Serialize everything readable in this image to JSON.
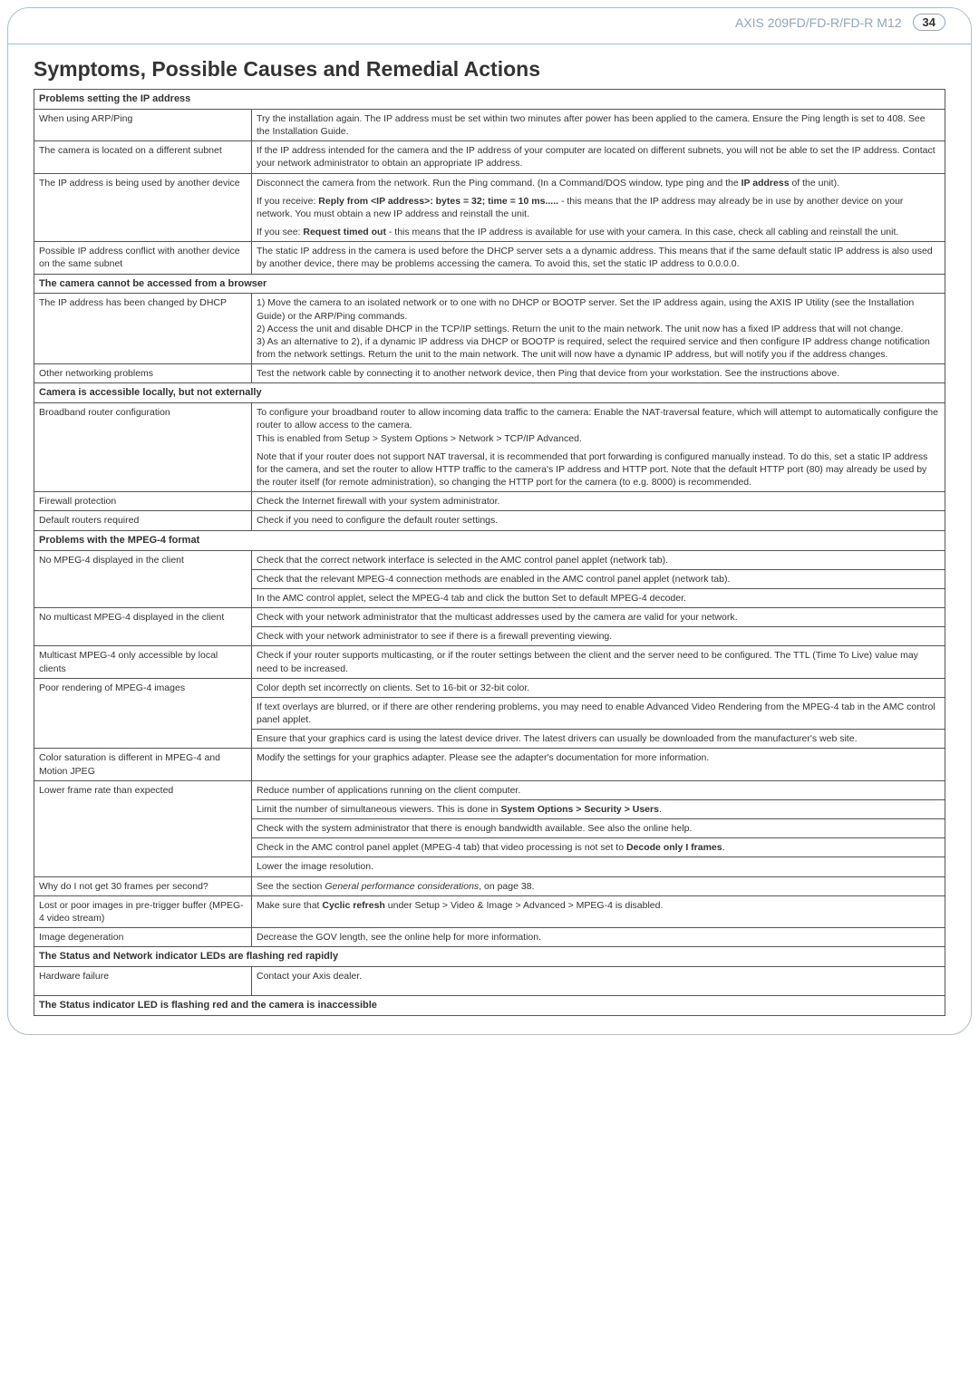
{
  "header": {
    "product": "AXIS 209FD/FD-R/FD-R M12",
    "page_number": "34"
  },
  "title": "Symptoms, Possible Causes and Remedial Actions",
  "groups": [
    {
      "header": "Problems setting the IP address",
      "rows": [
        {
          "problem": "When using ARP/Ping",
          "actions": [
            "Try the installation again. The IP address must be set within two minutes after power has been applied to the camera. Ensure the Ping length is set to 408. See the Installation Guide."
          ]
        },
        {
          "problem": "The camera is located on a different subnet",
          "actions": [
            "If the IP address intended for the camera and the IP address of your computer are located on different subnets, you will not be able to set the IP address. Contact your network administrator to obtain an appropriate IP address."
          ]
        },
        {
          "problem": "The IP address is being used by another device",
          "action_html": "<p>Disconnect the camera from the network. Run the Ping command. (In a Command/DOS window, type ping and the <span class=\"bold\">IP address</span> of the unit).</p><p>If you receive: <span class=\"bold\">Reply from &lt;IP address&gt;: bytes = 32; time = 10 ms.....</span> - this means that the IP address may already be in use by another device on your network. You must obtain a new IP address and reinstall the unit.</p><p>If you see: <span class=\"bold\">Request timed out</span> - this means that the IP address is available for use with your camera. In this case, check all cabling and reinstall the unit.</p>"
        },
        {
          "problem": "Possible IP address conflict with another device on the same subnet",
          "actions": [
            "The static IP address in the camera is used before the DHCP server sets a a dynamic address. This means that if the same default static IP address is also used by another device, there may be problems accessing the camera. To avoid this, set the static IP address to 0.0.0.0."
          ]
        }
      ]
    },
    {
      "header": "The camera cannot be accessed from a browser",
      "rows": [
        {
          "problem": "The IP address has been changed by DHCP",
          "action_html": "<p>1) Move the camera to an isolated network or to one with no DHCP or BOOTP server. Set the IP address again, using the AXIS IP Utility (see the Installation Guide) or the ARP/Ping commands.<br>2) Access the unit and disable DHCP in the TCP/IP settings. Return the unit to the main network. The unit now has a fixed IP address that will not change.<br>3) As an alternative to 2), if a dynamic IP address via DHCP or BOOTP is required, select the required service and then configure IP address change notification from the network settings. Return the unit to the main network. The unit will now have a dynamic IP address, but will notify you if the address changes.</p>"
        },
        {
          "problem": "Other networking problems",
          "actions": [
            "Test the network cable by connecting it to another network device, then Ping that device from your workstation. See the instructions above."
          ]
        }
      ]
    },
    {
      "header": "Camera is accessible locally, but not externally",
      "rows": [
        {
          "problem": "Broadband router configuration",
          "action_html": "<p>To configure your broadband router to allow incoming data traffic to the camera: Enable the NAT-traversal feature, which will attempt to automatically configure the router to allow access to the camera.<br>This is enabled from Setup &gt; System Options &gt; Network &gt; TCP/IP Advanced.</p><p>Note that if your router does not support NAT traversal, it is recommended that port forwarding is configured manually instead. To do this, set a static IP address for the camera, and set the router to allow HTTP traffic to the camera's IP address and HTTP port. Note that the default HTTP port (80) may already be used by the router itself (for remote administration), so changing the HTTP port for the camera (to e.g. 8000) is recommended.</p>"
        },
        {
          "problem": "Firewall protection",
          "actions": [
            "Check the Internet firewall with your system administrator."
          ]
        },
        {
          "problem": "Default routers required",
          "actions": [
            "Check if you need to configure the default router settings."
          ]
        }
      ]
    },
    {
      "header": "Problems with the MPEG-4 format",
      "rows": [
        {
          "problem": "No MPEG-4 displayed in the client",
          "rowspan": 3,
          "actions": [
            "Check that the correct network interface is selected in the AMC control panel applet (network tab)."
          ]
        },
        {
          "actions": [
            "Check that the relevant MPEG-4 connection methods are enabled in the AMC control panel applet (network tab)."
          ]
        },
        {
          "actions": [
            "In the AMC control applet, select the MPEG-4 tab and click the button Set to default MPEG-4 decoder."
          ]
        },
        {
          "problem": "No multicast MPEG-4 displayed in the client",
          "rowspan": 2,
          "actions": [
            "Check with your network administrator that the multicast addresses used by the camera are valid for your network."
          ]
        },
        {
          "actions": [
            "Check with your network administrator to see if there is a firewall preventing viewing."
          ]
        },
        {
          "problem": "Multicast MPEG-4 only accessible by local clients",
          "actions": [
            "Check if your router supports multicasting, or if the router settings between the client and the server need to be configured. The TTL (Time To Live) value may need to be increased."
          ]
        },
        {
          "problem": "Poor rendering of MPEG-4 images",
          "rowspan": 3,
          "actions": [
            "Color depth set incorrectly on clients. Set to 16-bit or 32-bit color."
          ]
        },
        {
          "actions": [
            "If text overlays are blurred, or if there are other rendering problems, you may need to enable Advanced Video Rendering from the MPEG-4 tab in the AMC control panel applet."
          ]
        },
        {
          "actions": [
            "Ensure that your graphics card is using the latest device driver. The latest drivers can usually be downloaded from the manufacturer's web site."
          ]
        },
        {
          "problem": "Color saturation is different in MPEG-4 and Motion JPEG",
          "actions": [
            "Modify the settings for your graphics adapter. Please see the adapter's documentation for more information."
          ]
        },
        {
          "problem": "Lower frame rate than expected",
          "rowspan": 5,
          "actions": [
            "Reduce number of applications running on the client computer."
          ]
        },
        {
          "action_html": "<p>Limit the number of simultaneous viewers. This is done in <span class=\"bold\">System Options &gt; Security &gt; Users</span>.</p>"
        },
        {
          "actions": [
            "Check with the system administrator that there is enough bandwidth available. See also the online help."
          ]
        },
        {
          "action_html": "<p>Check in the AMC control panel applet (MPEG-4 tab) that video processing is not set to <span class=\"bold\">Decode only I frames</span>.</p>"
        },
        {
          "actions": [
            "Lower the image resolution."
          ]
        },
        {
          "problem": "Why do I not get 30 frames per second?",
          "no_indent": true,
          "action_html": "<p>See the section <em>General performance considerations</em>, on page 38.</p>"
        },
        {
          "problem": "Lost or poor images in pre-trigger buffer (MPEG-4 video stream)",
          "action_html": "<p>Make sure that <span class=\"bold\">Cyclic refresh</span> under Setup &gt; Video &amp; Image &gt; Advanced &gt; MPEG-4 is disabled.</p>"
        },
        {
          "problem": "Image degeneration",
          "actions": [
            "Decrease the GOV length, see the online help for more information."
          ]
        }
      ]
    },
    {
      "header": "The Status and Network indicator LEDs are flashing red rapidly",
      "rows": [
        {
          "problem": "Hardware failure",
          "actions": [
            "Contact your Axis dealer."
          ],
          "extra_pad": true
        }
      ]
    },
    {
      "header": "The Status indicator LED is flashing red and the camera is inaccessible",
      "rows": []
    }
  ]
}
